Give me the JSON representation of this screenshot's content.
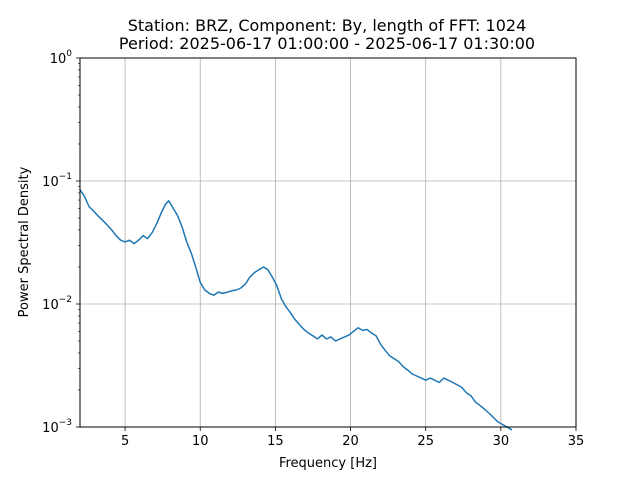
{
  "chart_data": {
    "type": "line",
    "title": "Station: BRZ, Component: By, length of FFT: 1024",
    "subtitle": "Period: 2025-06-17 01:00:00 - 2025-06-17 01:30:00",
    "xlabel": "Frequency [Hz]",
    "ylabel": "Power Spectral Density",
    "xlim": [
      2,
      35
    ],
    "ylim": [
      0.001,
      1
    ],
    "yscale": "log",
    "grid": true,
    "x_ticks": [
      5,
      10,
      15,
      20,
      25,
      30,
      35
    ],
    "x_tick_labels": [
      "5",
      "10",
      "15",
      "20",
      "25",
      "30",
      "35"
    ],
    "y_ticks": [
      0.001,
      0.01,
      0.1,
      1
    ],
    "y_tick_labels": [
      {
        "base": "10",
        "exp": "−3"
      },
      {
        "base": "10",
        "exp": "−2"
      },
      {
        "base": "10",
        "exp": "−1"
      },
      {
        "base": "10",
        "exp": "0"
      }
    ],
    "series": [
      {
        "color": "#1f77b4",
        "x": [
          2.0,
          2.3,
          2.6,
          2.9,
          3.2,
          3.5,
          3.8,
          4.1,
          4.4,
          4.7,
          5.0,
          5.3,
          5.6,
          5.9,
          6.2,
          6.5,
          6.8,
          7.1,
          7.4,
          7.7,
          7.9,
          8.2,
          8.5,
          8.8,
          9.1,
          9.4,
          9.7,
          10.0,
          10.3,
          10.6,
          10.9,
          11.2,
          11.5,
          11.8,
          12.1,
          12.4,
          12.7,
          13.0,
          13.3,
          13.6,
          13.9,
          14.2,
          14.5,
          14.8,
          15.1,
          15.4,
          15.7,
          16.0,
          16.3,
          16.6,
          16.9,
          17.2,
          17.5,
          17.8,
          18.1,
          18.4,
          18.7,
          19.0,
          19.3,
          19.6,
          19.9,
          20.2,
          20.5,
          20.8,
          21.1,
          21.4,
          21.7,
          22.0,
          22.3,
          22.6,
          22.9,
          23.2,
          23.5,
          23.8,
          24.1,
          24.4,
          24.7,
          25.0,
          25.3,
          25.6,
          25.9,
          26.2,
          26.5,
          26.8,
          27.1,
          27.4,
          27.7,
          28.0,
          28.3,
          28.6,
          28.9,
          29.2,
          29.5,
          29.8,
          30.1,
          30.4,
          30.7
        ],
        "y": [
          0.085,
          0.075,
          0.062,
          0.057,
          0.052,
          0.048,
          0.044,
          0.04,
          0.036,
          0.033,
          0.032,
          0.033,
          0.031,
          0.033,
          0.036,
          0.034,
          0.038,
          0.045,
          0.055,
          0.065,
          0.069,
          0.06,
          0.052,
          0.042,
          0.032,
          0.026,
          0.02,
          0.015,
          0.013,
          0.0122,
          0.0118,
          0.0125,
          0.0122,
          0.0125,
          0.0128,
          0.013,
          0.0135,
          0.0145,
          0.0165,
          0.018,
          0.019,
          0.02,
          0.019,
          0.0165,
          0.014,
          0.011,
          0.0095,
          0.0085,
          0.0075,
          0.0068,
          0.0062,
          0.0058,
          0.0055,
          0.0052,
          0.0056,
          0.0052,
          0.0054,
          0.005,
          0.0052,
          0.0054,
          0.0056,
          0.006,
          0.0064,
          0.0061,
          0.0062,
          0.0058,
          0.0055,
          0.0047,
          0.0042,
          0.0038,
          0.0036,
          0.0034,
          0.0031,
          0.0029,
          0.0027,
          0.0026,
          0.0025,
          0.0024,
          0.0025,
          0.0024,
          0.0023,
          0.0025,
          0.0024,
          0.0023,
          0.0022,
          0.0021,
          0.0019,
          0.0018,
          0.0016,
          0.0015,
          0.0014,
          0.0013,
          0.0012,
          0.0011,
          0.00105,
          0.001,
          0.00095
        ]
      }
    ]
  }
}
